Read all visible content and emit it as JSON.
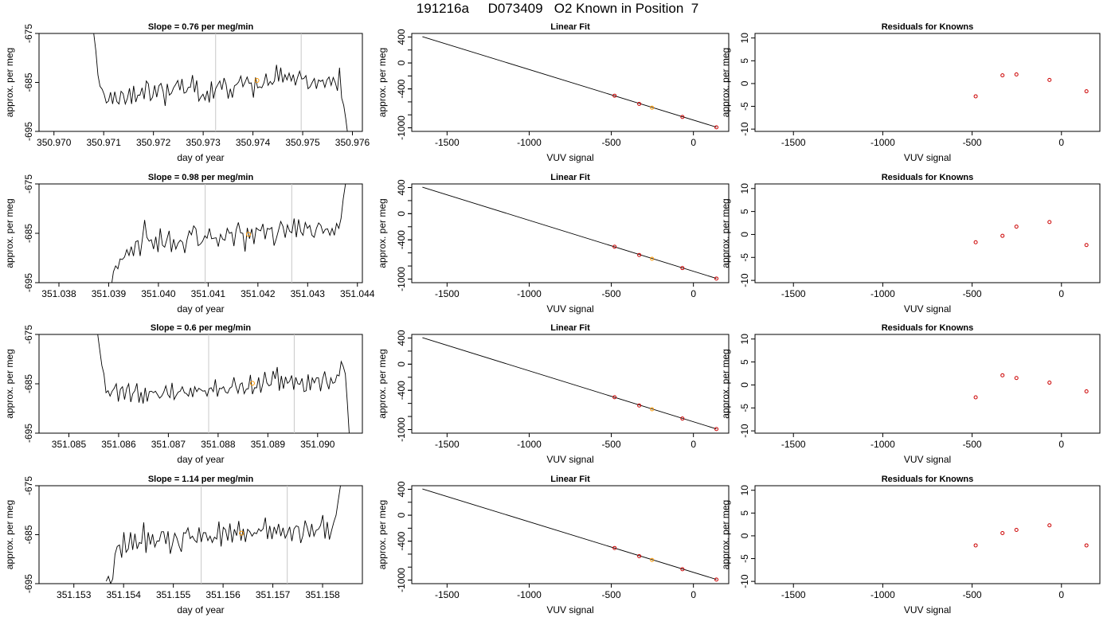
{
  "figure": {
    "title": "191216a     D073409   O2 Known in Position  7"
  },
  "common": {
    "ts_ylabel": "approx. per meg",
    "ts_xlabel": "day of year",
    "fit_title": "Linear Fit",
    "fit_xlabel": "VUV signal",
    "fit_ylabel": "approx. per meg",
    "res_title": "Residuals for Knowns",
    "res_xlabel": "VUV signal",
    "res_ylabel": "approx. per meg"
  },
  "chart_data": [
    {
      "type": "line",
      "row": 1,
      "title": "Slope =  0.76  per meg/min",
      "xlabel": "day of year",
      "ylabel": "approx. per meg",
      "xlim": [
        350.9697,
        350.9762
      ],
      "ylim": [
        -695,
        -675
      ],
      "ylim_note": "axis reversed: -675 at top, -695 at bottom",
      "x_ticks": [
        "350.970",
        "350.971",
        "350.972",
        "350.973",
        "350.974",
        "350.975",
        "350.976"
      ],
      "y_ticks": [
        "-675",
        "-685",
        "-695"
      ],
      "vlines": [
        350.97325,
        350.97497
      ],
      "highlight_point": {
        "x": 350.97408,
        "y": -684.6,
        "color": "#ff9900"
      },
      "series_x_start": 350.9708,
      "series_x_end": 350.97591,
      "series_y": [
        -675.0,
        -678.5,
        -683.5,
        -685.8,
        -686.4,
        -687.5,
        -689.2,
        -688.8,
        -687.0,
        -689.4,
        -686.9,
        -688.9,
        -689.4,
        -686.8,
        -687.3,
        -689.4,
        -688.3,
        -686.2,
        -689.4,
        -685.7,
        -689.0,
        -687.6,
        -687.6,
        -686.1,
        -688.4,
        -684.7,
        -685.3,
        -688.7,
        -688.0,
        -685.6,
        -688.0,
        -685.7,
        -685.2,
        -686.8,
        -689.8,
        -685.3,
        -687.6,
        -687.2,
        -686.1,
        -685.4,
        -684.6,
        -686.6,
        -684.3,
        -687.2,
        -687.0,
        -686.0,
        -686.0,
        -683.5,
        -687.0,
        -684.6,
        -688.8,
        -688.0,
        -687.4,
        -688.6,
        -686.7,
        -689.1,
        -684.8,
        -688.3,
        -686.3,
        -685.5,
        -684.7,
        -686.5,
        -684.1,
        -685.4,
        -688.3,
        -686.3,
        -688.1,
        -685.7,
        -685.4,
        -684.9,
        -683.7,
        -685.9,
        -685.0,
        -683.9,
        -685.2,
        -685.1,
        -688.1,
        -684.0,
        -686.1,
        -685.9,
        -686.1,
        -685.1,
        -683.2,
        -685.6,
        -684.8,
        -685.4,
        -684.7,
        -681.4,
        -684.8,
        -682.0,
        -685.0,
        -683.4,
        -684.5,
        -683.1,
        -684.7,
        -683.4,
        -685.6,
        -684.0,
        -682.7,
        -684.3,
        -684.2,
        -683.6,
        -686.3,
        -685.9,
        -685.0,
        -684.2,
        -686.3,
        -684.5,
        -684.8,
        -684.5,
        -686.0,
        -684.5,
        -683.9,
        -685.6,
        -684.0,
        -685.1,
        -686.7,
        -682.0,
        -688.2,
        -689.7,
        -692.5,
        -696.0
      ]
    },
    {
      "type": "line",
      "row": 2,
      "title": "Slope =  0.98  per meg/min",
      "xlabel": "day of year",
      "ylabel": "approx. per meg",
      "xlim": [
        351.0376,
        351.0441
      ],
      "ylim": [
        -695,
        -675
      ],
      "ylim_note": "axis reversed: -675 at top, -695 at bottom",
      "x_ticks": [
        "351.038",
        "351.039",
        "351.040",
        "351.041",
        "351.042",
        "351.043",
        "351.044"
      ],
      "y_ticks": [
        "-675",
        "-685",
        "-695"
      ],
      "vlines": [
        351.04094,
        351.04268
      ],
      "highlight_point": {
        "x": 351.04181,
        "y": -685.2,
        "color": "#ff9900"
      },
      "series_x_start": 351.03905,
      "series_x_end": 351.04376,
      "series_y": [
        -696.0,
        -692.8,
        -691.6,
        -692.2,
        -690.2,
        -690.3,
        -689.8,
        -688.3,
        -689.5,
        -687.7,
        -689.6,
        -686.7,
        -686.5,
        -689.6,
        -686.1,
        -682.3,
        -685.8,
        -686.6,
        -686.3,
        -688.2,
        -685.7,
        -688.8,
        -684.0,
        -687.4,
        -687.8,
        -686.2,
        -684.5,
        -688.8,
        -686.2,
        -688.2,
        -687.0,
        -686.4,
        -686.8,
        -689.0,
        -686.3,
        -684.5,
        -685.3,
        -683.5,
        -684.1,
        -687.5,
        -687.2,
        -686.6,
        -685.5,
        -686.0,
        -684.0,
        -686.1,
        -686.0,
        -685.9,
        -687.7,
        -685.2,
        -686.2,
        -686.4,
        -684.0,
        -685.0,
        -684.8,
        -687.6,
        -684.3,
        -682.8,
        -684.9,
        -685.0,
        -688.7,
        -683.9,
        -686.1,
        -684.1,
        -687.2,
        -683.9,
        -684.3,
        -684.5,
        -683.1,
        -686.2,
        -684.0,
        -684.2,
        -683.8,
        -687.5,
        -686.1,
        -684.4,
        -682.6,
        -683.6,
        -685.9,
        -683.3,
        -684.6,
        -684.9,
        -682.0,
        -685.8,
        -682.2,
        -684.7,
        -685.4,
        -682.8,
        -684.0,
        -683.4,
        -685.4,
        -685.8,
        -684.0,
        -682.9,
        -683.4,
        -685.0,
        -684.2,
        -684.1,
        -685.4,
        -684.0,
        -685.4,
        -683.0,
        -684.0,
        -682.0,
        -678.0,
        -675.0
      ]
    },
    {
      "type": "line",
      "row": 3,
      "title": "Slope =  0.6  per meg/min",
      "xlabel": "day of year",
      "ylabel": "approx. per meg",
      "xlim": [
        351.0844,
        351.0909
      ],
      "ylim": [
        -695,
        -675
      ],
      "ylim_note": "axis reversed: -675 at top, -695 at bottom",
      "x_ticks": [
        "351.085",
        "351.086",
        "351.087",
        "351.088",
        "351.089",
        "351.090"
      ],
      "y_ticks": [
        "-675",
        "-685",
        "-695"
      ],
      "vlines": [
        351.08781,
        351.08953
      ],
      "highlight_point": {
        "x": 351.08869,
        "y": -684.9,
        "color": "#ff9900"
      },
      "series_x_start": 351.08558,
      "series_x_end": 351.09064,
      "series_y": [
        -675.0,
        -678.2,
        -681.3,
        -683.0,
        -686.8,
        -686.4,
        -687.5,
        -686.5,
        -685.9,
        -685.0,
        -688.6,
        -686.1,
        -685.6,
        -688.2,
        -686.0,
        -685.0,
        -688.7,
        -687.0,
        -686.4,
        -684.9,
        -688.8,
        -686.7,
        -689.0,
        -685.8,
        -688.6,
        -686.6,
        -686.5,
        -686.8,
        -686.5,
        -687.2,
        -687.9,
        -687.5,
        -686.7,
        -685.4,
        -687.2,
        -687.8,
        -684.8,
        -688.2,
        -687.4,
        -686.7,
        -686.5,
        -685.6,
        -686.8,
        -687.0,
        -687.5,
        -685.8,
        -687.7,
        -685.6,
        -686.6,
        -685.9,
        -686.2,
        -686.5,
        -686.4,
        -687.5,
        -686.0,
        -685.8,
        -686.6,
        -684.1,
        -687.6,
        -685.9,
        -686.0,
        -685.6,
        -686.7,
        -686.9,
        -685.9,
        -685.6,
        -683.7,
        -685.6,
        -686.9,
        -685.1,
        -684.8,
        -687.0,
        -686.1,
        -686.0,
        -683.2,
        -687.1,
        -685.8,
        -685.8,
        -683.7,
        -686.8,
        -685.0,
        -682.6,
        -684.8,
        -685.4,
        -685.2,
        -682.4,
        -684.0,
        -681.6,
        -686.4,
        -683.4,
        -686.0,
        -683.6,
        -684.9,
        -684.5,
        -683.3,
        -686.2,
        -683.7,
        -685.0,
        -685.1,
        -683.9,
        -686.6,
        -686.4,
        -683.1,
        -686.3,
        -683.8,
        -684.8,
        -683.8,
        -683.8,
        -686.5,
        -684.0,
        -682.5,
        -684.7,
        -686.1,
        -683.8,
        -684.9,
        -684.7,
        -683.2,
        -683.4,
        -680.5,
        -681.5,
        -683.0,
        -689.0,
        -696.0
      ]
    },
    {
      "type": "line",
      "row": 4,
      "title": "Slope =  1.14  per meg/min",
      "xlabel": "day of year",
      "ylabel": "approx. per meg",
      "xlim": [
        351.1523,
        351.1588
      ],
      "ylim": [
        -695,
        -675
      ],
      "ylim_note": "axis reversed: -675 at top, -695 at bottom",
      "x_ticks": [
        "351.153",
        "351.154",
        "351.155",
        "351.156",
        "351.157",
        "351.158"
      ],
      "y_ticks": [
        "-675",
        "-685",
        "-695"
      ],
      "vlines": [
        351.15556,
        351.15729
      ],
      "highlight_point": {
        "x": 351.15637,
        "y": -684.7,
        "color": "#ff9900"
      },
      "series_x_start": 351.15365,
      "series_x_end": 351.15836,
      "series_y": [
        -694.5,
        -693.5,
        -695.0,
        -694.0,
        -689.0,
        -687.4,
        -687.1,
        -689.7,
        -684.5,
        -688.6,
        -687.9,
        -684.5,
        -688.1,
        -684.8,
        -687.9,
        -686.6,
        -686.8,
        -682.5,
        -688.7,
        -684.5,
        -687.0,
        -684.9,
        -687.5,
        -686.3,
        -686.3,
        -684.4,
        -684.4,
        -686.9,
        -684.3,
        -688.9,
        -686.9,
        -684.7,
        -685.7,
        -687.3,
        -688.5,
        -684.6,
        -684.7,
        -683.6,
        -685.8,
        -685.3,
        -686.1,
        -686.6,
        -683.5,
        -686.5,
        -684.6,
        -684.6,
        -686.2,
        -685.3,
        -686.6,
        -685.5,
        -685.9,
        -682.3,
        -687.4,
        -683.5,
        -684.0,
        -686.2,
        -682.7,
        -686.6,
        -683.9,
        -685.2,
        -682.2,
        -686.2,
        -683.8,
        -686.5,
        -683.9,
        -684.4,
        -685.3,
        -684.6,
        -684.8,
        -683.8,
        -684.3,
        -683.8,
        -681.5,
        -685.9,
        -683.2,
        -685.9,
        -683.4,
        -684.8,
        -682.8,
        -685.3,
        -683.6,
        -685.7,
        -684.7,
        -683.4,
        -686.3,
        -683.8,
        -683.2,
        -683.4,
        -686.7,
        -685.2,
        -682.1,
        -683.6,
        -685.5,
        -682.8,
        -685.3,
        -684.1,
        -683.9,
        -683.1,
        -681.0,
        -685.8,
        -682.4,
        -686.0,
        -684.1,
        -682.4,
        -681.0,
        -678.0,
        -675.0
      ]
    },
    {
      "type": "scatter",
      "row": 1,
      "title": "Linear Fit",
      "xlabel": "VUV signal",
      "ylabel": "approx. per meg",
      "xlim": [
        -1715,
        215
      ],
      "ylim": [
        -1055,
        455
      ],
      "x_ticks": [
        -1500,
        -1000,
        -500,
        0
      ],
      "y_ticks": [
        400,
        0,
        -400,
        -1000
      ],
      "fit_line": {
        "x": [
          -1650,
          140
        ],
        "y": [
          405,
          -990
        ]
      },
      "points": [
        {
          "x": -480,
          "y": -505,
          "color": "#cc0000"
        },
        {
          "x": -330,
          "y": -632,
          "color": "#cc0000"
        },
        {
          "x": -252,
          "y": -690,
          "color": "#ff9900"
        },
        {
          "x": -67,
          "y": -832,
          "color": "#cc0000"
        },
        {
          "x": 140,
          "y": -992,
          "color": "#cc0000"
        }
      ]
    },
    {
      "type": "scatter",
      "row": 2,
      "title": "Linear Fit",
      "xlabel": "VUV signal",
      "ylabel": "approx. per meg",
      "xlim": [
        -1715,
        215
      ],
      "ylim": [
        -1055,
        455
      ],
      "x_ticks": [
        -1500,
        -1000,
        -500,
        0
      ],
      "y_ticks": [
        400,
        0,
        -400,
        -1000
      ],
      "fit_line": {
        "x": [
          -1650,
          140
        ],
        "y": [
          405,
          -990
        ]
      },
      "points": [
        {
          "x": -480,
          "y": -505,
          "color": "#cc0000"
        },
        {
          "x": -330,
          "y": -632,
          "color": "#cc0000"
        },
        {
          "x": -252,
          "y": -690,
          "color": "#ff9900"
        },
        {
          "x": -67,
          "y": -832,
          "color": "#cc0000"
        },
        {
          "x": 140,
          "y": -992,
          "color": "#cc0000"
        }
      ]
    },
    {
      "type": "scatter",
      "row": 3,
      "title": "Linear Fit",
      "xlabel": "VUV signal",
      "ylabel": "approx. per meg",
      "xlim": [
        -1715,
        215
      ],
      "ylim": [
        -1055,
        455
      ],
      "x_ticks": [
        -1500,
        -1000,
        -500,
        0
      ],
      "y_ticks": [
        400,
        0,
        -400,
        -1000
      ],
      "fit_line": {
        "x": [
          -1650,
          140
        ],
        "y": [
          405,
          -990
        ]
      },
      "points": [
        {
          "x": -480,
          "y": -505,
          "color": "#cc0000"
        },
        {
          "x": -330,
          "y": -632,
          "color": "#cc0000"
        },
        {
          "x": -252,
          "y": -690,
          "color": "#ff9900"
        },
        {
          "x": -67,
          "y": -832,
          "color": "#cc0000"
        },
        {
          "x": 140,
          "y": -992,
          "color": "#cc0000"
        }
      ]
    },
    {
      "type": "scatter",
      "row": 4,
      "title": "Linear Fit",
      "xlabel": "VUV signal",
      "ylabel": "approx. per meg",
      "xlim": [
        -1715,
        215
      ],
      "ylim": [
        -1055,
        455
      ],
      "x_ticks": [
        -1500,
        -1000,
        -500,
        0
      ],
      "y_ticks": [
        400,
        0,
        -400,
        -1000
      ],
      "fit_line": {
        "x": [
          -1650,
          140
        ],
        "y": [
          405,
          -990
        ]
      },
      "points": [
        {
          "x": -480,
          "y": -505,
          "color": "#cc0000"
        },
        {
          "x": -330,
          "y": -632,
          "color": "#cc0000"
        },
        {
          "x": -252,
          "y": -690,
          "color": "#ff9900"
        },
        {
          "x": -67,
          "y": -832,
          "color": "#cc0000"
        },
        {
          "x": 140,
          "y": -992,
          "color": "#cc0000"
        }
      ]
    },
    {
      "type": "scatter",
      "row": 1,
      "title": "Residuals for Knowns",
      "xlabel": "VUV signal",
      "ylabel": "approx. per meg",
      "xlim": [
        -1715,
        215
      ],
      "ylim": [
        -10.5,
        11
      ],
      "x_ticks": [
        -1500,
        -1000,
        -500,
        0
      ],
      "y_ticks": [
        10,
        5,
        0,
        -5,
        -10
      ],
      "points": [
        {
          "x": -480,
          "y": -2.8,
          "color": "#cc0000"
        },
        {
          "x": -330,
          "y": 1.8,
          "color": "#cc0000"
        },
        {
          "x": -252,
          "y": 2.0,
          "color": "#cc0000"
        },
        {
          "x": -67,
          "y": 0.8,
          "color": "#cc0000"
        },
        {
          "x": 140,
          "y": -1.7,
          "color": "#cc0000"
        }
      ]
    },
    {
      "type": "scatter",
      "row": 2,
      "title": "Residuals for Knowns",
      "xlabel": "VUV signal",
      "ylabel": "approx. per meg",
      "xlim": [
        -1715,
        215
      ],
      "ylim": [
        -10.5,
        11
      ],
      "x_ticks": [
        -1500,
        -1000,
        -500,
        0
      ],
      "y_ticks": [
        10,
        5,
        0,
        -5,
        -10
      ],
      "points": [
        {
          "x": -480,
          "y": -1.7,
          "color": "#cc0000"
        },
        {
          "x": -330,
          "y": -0.3,
          "color": "#cc0000"
        },
        {
          "x": -252,
          "y": 1.7,
          "color": "#cc0000"
        },
        {
          "x": -67,
          "y": 2.7,
          "color": "#cc0000"
        },
        {
          "x": 140,
          "y": -2.3,
          "color": "#cc0000"
        }
      ]
    },
    {
      "type": "scatter",
      "row": 3,
      "title": "Residuals for Knowns",
      "xlabel": "VUV signal",
      "ylabel": "approx. per meg",
      "xlim": [
        -1715,
        215
      ],
      "ylim": [
        -10.5,
        11
      ],
      "x_ticks": [
        -1500,
        -1000,
        -500,
        0
      ],
      "y_ticks": [
        10,
        5,
        0,
        -5,
        -10
      ],
      "points": [
        {
          "x": -480,
          "y": -2.7,
          "color": "#cc0000"
        },
        {
          "x": -330,
          "y": 2.1,
          "color": "#cc0000"
        },
        {
          "x": -252,
          "y": 1.5,
          "color": "#cc0000"
        },
        {
          "x": -67,
          "y": 0.5,
          "color": "#cc0000"
        },
        {
          "x": 140,
          "y": -1.4,
          "color": "#cc0000"
        }
      ]
    },
    {
      "type": "scatter",
      "row": 4,
      "title": "Residuals for Knowns",
      "xlabel": "VUV signal",
      "ylabel": "approx. per meg",
      "xlim": [
        -1715,
        215
      ],
      "ylim": [
        -10.5,
        11
      ],
      "x_ticks": [
        -1500,
        -1000,
        -500,
        0
      ],
      "y_ticks": [
        10,
        5,
        0,
        -5,
        -10
      ],
      "points": [
        {
          "x": -480,
          "y": -2.1,
          "color": "#cc0000"
        },
        {
          "x": -330,
          "y": 0.6,
          "color": "#cc0000"
        },
        {
          "x": -252,
          "y": 1.3,
          "color": "#cc0000"
        },
        {
          "x": -67,
          "y": 2.3,
          "color": "#cc0000"
        },
        {
          "x": 140,
          "y": -2.1,
          "color": "#cc0000"
        }
      ]
    }
  ]
}
